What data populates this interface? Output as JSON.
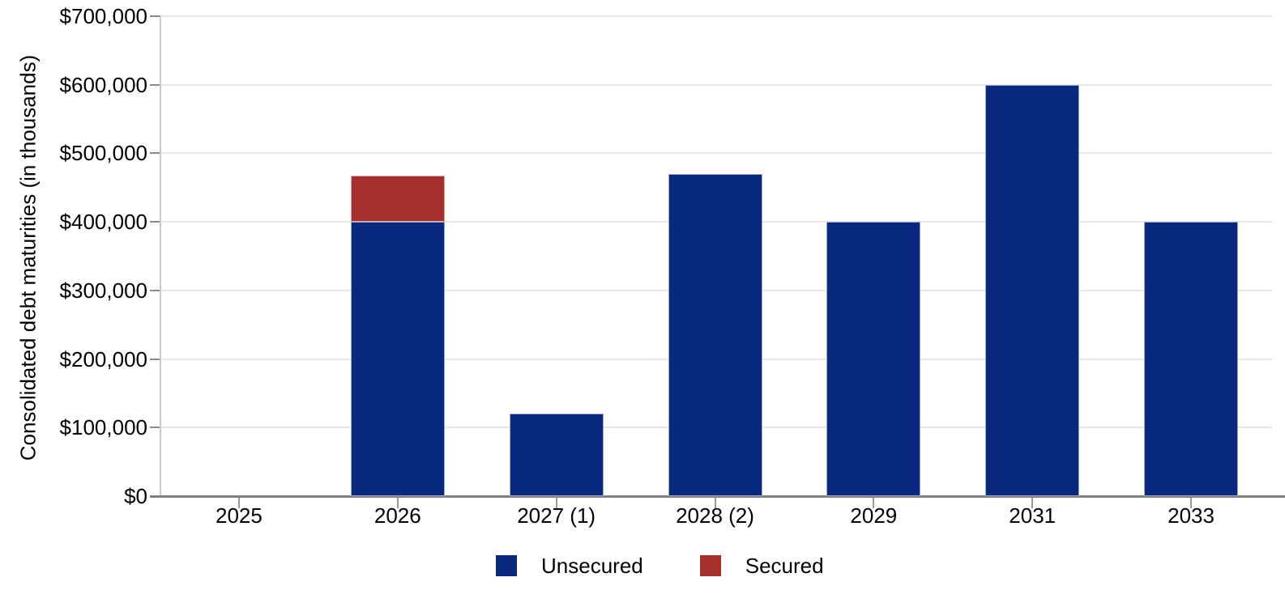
{
  "chart_data": {
    "type": "bar",
    "stacked": true,
    "title": "",
    "categories": [
      "2025",
      "2026",
      "2027 (1)",
      "2028 (2)",
      "2029",
      "2031",
      "2033"
    ],
    "series": [
      {
        "name": "Unsecured",
        "color": "#08297d",
        "values": [
          0,
          400000,
          120000,
          470000,
          400000,
          600000,
          400000
        ]
      },
      {
        "name": "Secured",
        "color": "#a72f2b",
        "values": [
          0,
          68000,
          0,
          0,
          0,
          0,
          0
        ]
      }
    ],
    "xlabel": "",
    "ylabel": "Consolidated debt maturities (in thousands)",
    "ylim": [
      0,
      700000
    ],
    "ytick_interval": 100000,
    "ytick_labels": [
      "$0",
      "$100,000",
      "$200,000",
      "$300,000",
      "$400,000",
      "$500,000",
      "$600,000",
      "$700,000"
    ],
    "grid": true,
    "legend_position": "bottom"
  },
  "colors": {
    "gridline": "#e7e7e7",
    "x_axis": "#808080",
    "y_axis": "#c9c9c9",
    "text": "#000000"
  }
}
